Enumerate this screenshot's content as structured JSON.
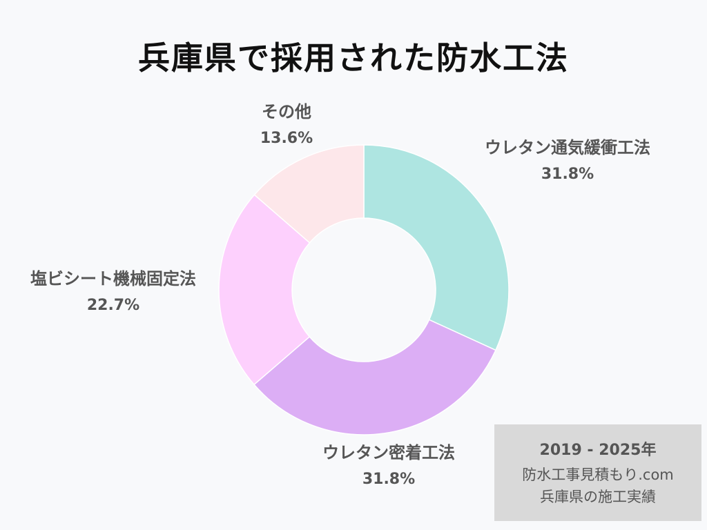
{
  "title": "兵庫県で採用された防水工法",
  "chart_data": {
    "type": "pie",
    "variant": "donut",
    "title": "兵庫県で採用された防水工法",
    "start": "top",
    "direction": "clockwise",
    "slices": [
      {
        "label": "ウレタン通気緩衝工法",
        "value": 31.8,
        "value_label": "31.8%",
        "color": "#aee5e1"
      },
      {
        "label": "ウレタン密着工法",
        "value": 31.8,
        "value_label": "31.8%",
        "color": "#dcaef5"
      },
      {
        "label": "塩ビシート機械固定法",
        "value": 22.7,
        "value_label": "22.7%",
        "color": "#fdd0fd"
      },
      {
        "label": "その他",
        "value": 13.6,
        "value_label": "13.6%",
        "color": "#fde7ea"
      }
    ],
    "legend": "none"
  },
  "source": {
    "line1": "2019 - 2025年",
    "line2": "防水工事見積もり.com",
    "line3": "兵庫県の施工実績"
  }
}
